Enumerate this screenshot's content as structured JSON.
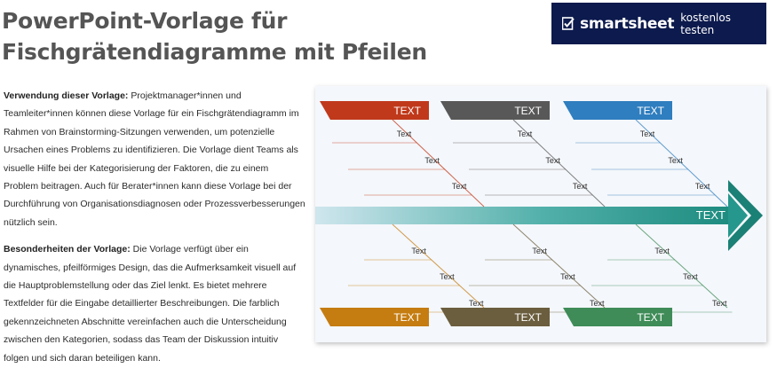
{
  "page": {
    "title_line1": "PowerPoint-Vorlage für",
    "title_line2": "Fischgrätendiagramme mit Pfeilen"
  },
  "cta": {
    "brand": "smartsheet",
    "action": "kostenlos testen",
    "background": "#0c1a4d"
  },
  "description": {
    "usage_heading": "Verwendung dieser Vorlage:",
    "usage_text": " Projektmanager*innen und Teamleiter*innen können diese Vorlage für ein Fischgrätendiagramm im Rahmen von Brainstorming-Sitzungen verwenden, um potenzielle Ursachen eines Problems zu identifizieren. Die Vorlage dient Teams als visuelle Hilfe bei der Kategorisierung der Faktoren, die zu einem Problem beitragen. Auch für Berater*innen kann diese Vorlage bei der Durchführung von Organisationsdiagnosen oder Prozessverbesserungen nützlich sein.",
    "features_heading": "Besonderheiten der Vorlage:",
    "features_text": " Die Vorlage verfügt über ein dynamisches, pfeilförmiges Design, das die Aufmerksamkeit visuell auf die Hauptproblemstellung oder das Ziel lenkt. Es bietet mehrere Textfelder für die Eingabe detaillierter Beschreibungen. Die farblich gekennzeichneten Abschnitte vereinfachen auch die Unterscheidung zwischen den Kategorien, sodass das Team der Diskussion intuitiv folgen und sich daran beteiligen kann."
  },
  "diagram": {
    "head_label": "TEXT",
    "spine_color": "#1e8c80",
    "categories_top": [
      {
        "label": "TEXT",
        "color": "#c0391b",
        "causes": [
          "Text",
          "Text",
          "Text"
        ]
      },
      {
        "label": "TEXT",
        "color": "#585858",
        "causes": [
          "Text",
          "Text",
          "Text"
        ]
      },
      {
        "label": "TEXT",
        "color": "#2f7ebf",
        "causes": [
          "Text",
          "Text",
          "Text"
        ]
      }
    ],
    "categories_bottom": [
      {
        "label": "TEXT",
        "color": "#c57c10",
        "causes": [
          "Text",
          "Text",
          "Text"
        ]
      },
      {
        "label": "TEXT",
        "color": "#6b5e3e",
        "causes": [
          "Text",
          "Text",
          "Text"
        ]
      },
      {
        "label": "TEXT",
        "color": "#3f8c58",
        "causes": [
          "Text",
          "Text",
          "Text"
        ]
      }
    ]
  }
}
